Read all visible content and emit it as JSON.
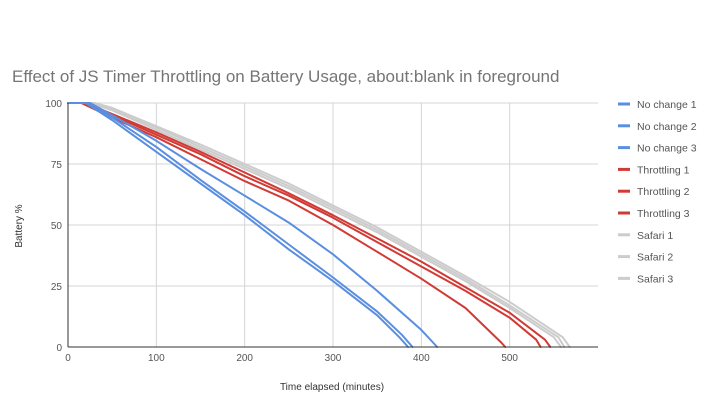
{
  "chart_data": {
    "type": "line",
    "title": "Effect of JS Timer Throttling on Battery Usage, about:blank in foreground",
    "xlabel": "Time elapsed (minutes)",
    "ylabel": "Battery %",
    "xlim": [
      0,
      600
    ],
    "ylim": [
      0,
      100
    ],
    "xticks": [
      0,
      100,
      200,
      300,
      400,
      500
    ],
    "yticks": [
      0,
      25,
      50,
      75,
      100
    ],
    "grid": true,
    "legend_position": "right",
    "colors": {
      "no_change": "#5a8fe0",
      "throttling": "#d13b35",
      "safari": "#cccccc"
    },
    "series": [
      {
        "name": "No change 1",
        "group": "no_change",
        "points": [
          [
            0,
            100
          ],
          [
            20,
            100
          ],
          [
            50,
            93
          ],
          [
            100,
            80
          ],
          [
            150,
            67
          ],
          [
            200,
            54
          ],
          [
            250,
            40
          ],
          [
            300,
            27
          ],
          [
            350,
            13
          ],
          [
            375,
            4
          ],
          [
            385,
            0
          ]
        ]
      },
      {
        "name": "No change 2",
        "group": "no_change",
        "points": [
          [
            0,
            100
          ],
          [
            22,
            100
          ],
          [
            50,
            94
          ],
          [
            100,
            82
          ],
          [
            150,
            68.5
          ],
          [
            200,
            55.5
          ],
          [
            250,
            42
          ],
          [
            300,
            28.5
          ],
          [
            350,
            14.5
          ],
          [
            378,
            5
          ],
          [
            390,
            0
          ]
        ]
      },
      {
        "name": "No change 3",
        "group": "no_change",
        "points": [
          [
            0,
            100
          ],
          [
            25,
            100
          ],
          [
            50,
            95
          ],
          [
            100,
            84.5
          ],
          [
            150,
            73
          ],
          [
            200,
            62
          ],
          [
            250,
            51
          ],
          [
            300,
            38
          ],
          [
            350,
            23
          ],
          [
            400,
            7
          ],
          [
            418,
            0
          ]
        ]
      },
      {
        "name": "Throttling 1",
        "group": "throttling",
        "points": [
          [
            0,
            100
          ],
          [
            15,
            100
          ],
          [
            50,
            94
          ],
          [
            100,
            86
          ],
          [
            150,
            77
          ],
          [
            200,
            68
          ],
          [
            250,
            60
          ],
          [
            300,
            50
          ],
          [
            350,
            39
          ],
          [
            400,
            28
          ],
          [
            450,
            16
          ],
          [
            490,
            2
          ],
          [
            495,
            0
          ]
        ]
      },
      {
        "name": "Throttling 2",
        "group": "throttling",
        "points": [
          [
            0,
            100
          ],
          [
            18,
            100
          ],
          [
            50,
            95
          ],
          [
            100,
            87
          ],
          [
            150,
            79
          ],
          [
            200,
            70
          ],
          [
            250,
            62
          ],
          [
            300,
            53
          ],
          [
            350,
            43
          ],
          [
            400,
            33
          ],
          [
            450,
            23
          ],
          [
            500,
            12
          ],
          [
            530,
            3
          ],
          [
            535,
            0
          ]
        ]
      },
      {
        "name": "Throttling 3",
        "group": "throttling",
        "points": [
          [
            0,
            100
          ],
          [
            20,
            100
          ],
          [
            50,
            95.5
          ],
          [
            100,
            88
          ],
          [
            150,
            80
          ],
          [
            200,
            71.5
          ],
          [
            250,
            63
          ],
          [
            300,
            54
          ],
          [
            350,
            44.5
          ],
          [
            400,
            35
          ],
          [
            450,
            24.5
          ],
          [
            500,
            14
          ],
          [
            540,
            3
          ],
          [
            546,
            0
          ]
        ]
      },
      {
        "name": "Safari 1",
        "group": "safari",
        "points": [
          [
            0,
            100
          ],
          [
            25,
            100
          ],
          [
            50,
            97
          ],
          [
            100,
            89
          ],
          [
            150,
            81
          ],
          [
            200,
            73
          ],
          [
            250,
            65
          ],
          [
            300,
            56
          ],
          [
            350,
            47
          ],
          [
            400,
            37
          ],
          [
            450,
            27
          ],
          [
            500,
            16
          ],
          [
            550,
            4
          ],
          [
            558,
            0
          ]
        ]
      },
      {
        "name": "Safari 2",
        "group": "safari",
        "points": [
          [
            0,
            100
          ],
          [
            28,
            100
          ],
          [
            50,
            97.5
          ],
          [
            100,
            90
          ],
          [
            150,
            82
          ],
          [
            200,
            74
          ],
          [
            250,
            66
          ],
          [
            300,
            57
          ],
          [
            350,
            48
          ],
          [
            400,
            38
          ],
          [
            450,
            28
          ],
          [
            500,
            17
          ],
          [
            555,
            4
          ],
          [
            562,
            0
          ]
        ]
      },
      {
        "name": "Safari 3",
        "group": "safari",
        "points": [
          [
            0,
            100
          ],
          [
            30,
            100
          ],
          [
            50,
            98
          ],
          [
            100,
            90.5
          ],
          [
            150,
            83
          ],
          [
            200,
            75
          ],
          [
            250,
            67
          ],
          [
            300,
            58
          ],
          [
            350,
            49
          ],
          [
            400,
            39
          ],
          [
            450,
            29
          ],
          [
            500,
            18.5
          ],
          [
            560,
            4
          ],
          [
            568,
            0
          ]
        ]
      }
    ]
  }
}
